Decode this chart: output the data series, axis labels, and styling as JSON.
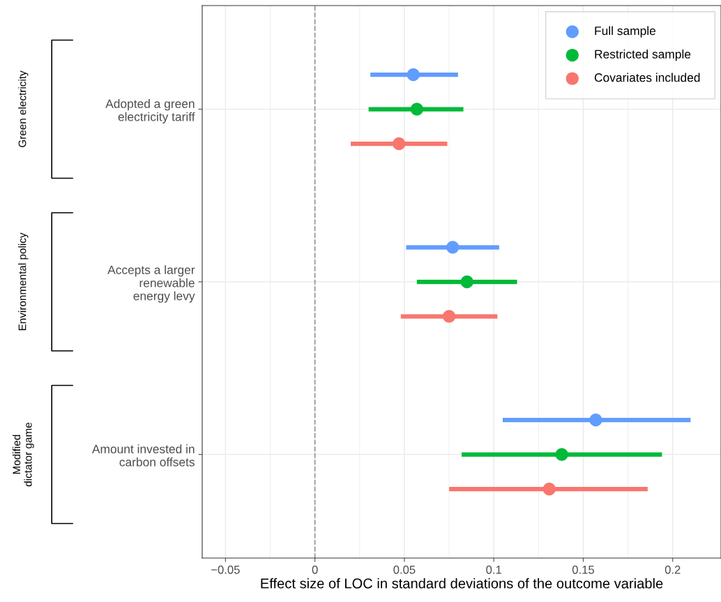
{
  "chart_data": {
    "type": "scatter",
    "orientation": "horizontal",
    "categories": [
      "Adopted a green\nelectricity tariff",
      "Accepts a larger\nrenewable\nenergy levy",
      "Amount invested in\ncarbon offsets"
    ],
    "xlabel": "Effect size of LOC in standard deviations of the outcome variable",
    "xlim": [
      -0.063,
      0.227
    ],
    "xticks": [
      {
        "value": -0.05,
        "label": "−0.05"
      },
      0,
      0.05,
      0.1,
      0.15,
      0.2
    ],
    "series": [
      {
        "name": "Full sample",
        "color": "#619cff",
        "values": [
          0.055,
          0.077,
          0.157
        ],
        "errors": [
          [
            0.031,
            0.08
          ],
          [
            0.051,
            0.103
          ],
          [
            0.105,
            0.21
          ]
        ]
      },
      {
        "name": "Restricted sample",
        "color": "#00ba38",
        "values": [
          0.057,
          0.085,
          0.138
        ],
        "errors": [
          [
            0.03,
            0.083
          ],
          [
            0.057,
            0.113
          ],
          [
            0.082,
            0.194
          ]
        ]
      },
      {
        "name": "Covariates included",
        "color": "#f8766d",
        "values": [
          0.047,
          0.075,
          0.131
        ],
        "errors": [
          [
            0.02,
            0.074
          ],
          [
            0.048,
            0.102
          ],
          [
            0.075,
            0.186
          ]
        ]
      }
    ],
    "ref_lines": [
      {
        "axis": "x",
        "value": 0,
        "color": "#999999",
        "line_style": "dashed"
      }
    ],
    "annotations": [
      "Green electricity",
      "Environmental policy",
      "Modified\ndictator game"
    ],
    "grid": true,
    "legend": "top right",
    "marker": "circle"
  }
}
